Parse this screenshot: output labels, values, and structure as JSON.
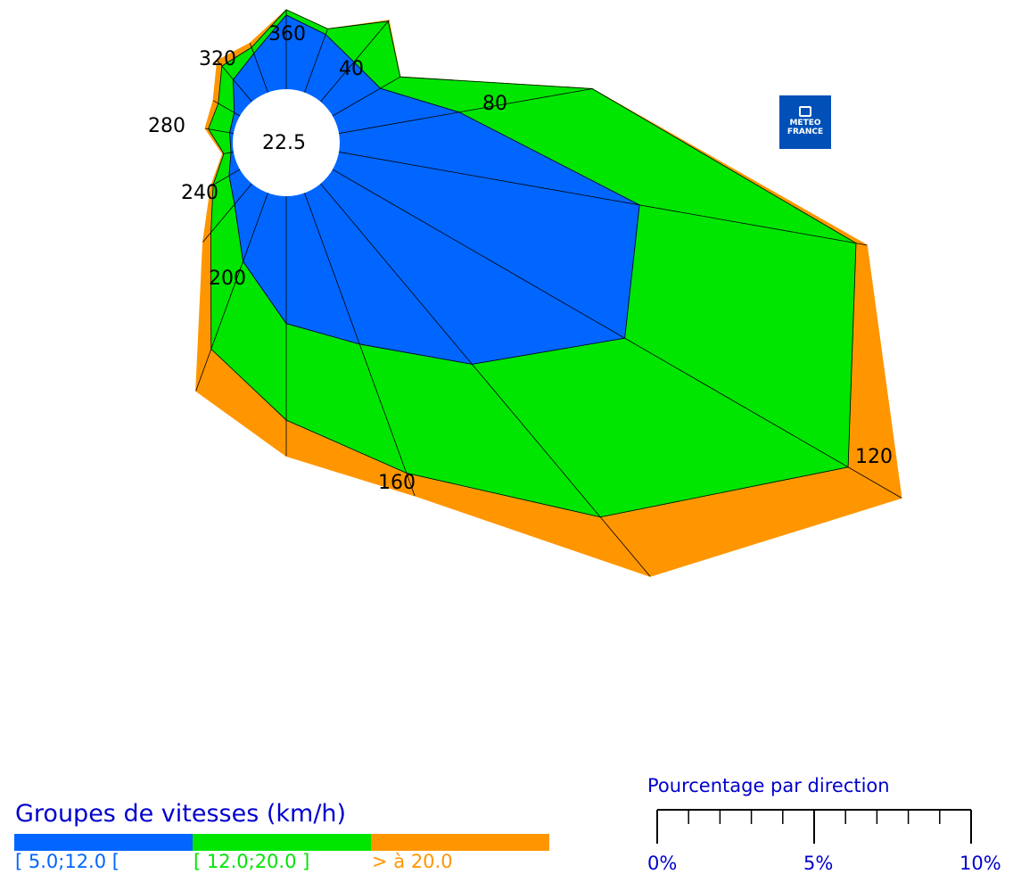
{
  "chart_data": {
    "type": "wind-rose",
    "calm_value": "22.5",
    "direction_labels": [
      "360",
      "40",
      "80",
      "120",
      "160",
      "200",
      "240",
      "280",
      "320"
    ],
    "directions": [
      0,
      20,
      40,
      60,
      80,
      100,
      120,
      140,
      160,
      180,
      200,
      220,
      240,
      260,
      280,
      300,
      320,
      340
    ],
    "series": [
      {
        "name": "[ 5.0;12.0 [",
        "color": "#0066ff",
        "values": [
          1.13,
          0.94,
          0.79,
          0.84,
          1.86,
          4.65,
          5.14,
          3.59,
          2.45,
          1.94,
          1.11,
          0.41,
          0.19,
          0.04,
          0.06,
          0.1,
          0.44,
          0.63
        ]
      },
      {
        "name": "[ 12.0;20.0 ]",
        "color": "#00e600",
        "values": [
          0.08,
          0.09,
          0.81,
          0.35,
          2.06,
          3.35,
          3.93,
          3.04,
          2.09,
          1.47,
          1.42,
          0.56,
          0.28,
          0.11,
          0.33,
          0.28,
          0.27,
          0.1
        ]
      },
      {
        "name": "> à 20.0",
        "color": "#ff9600",
        "values": [
          0.0,
          0.0,
          0.02,
          0.0,
          0.0,
          0.17,
          0.94,
          1.18,
          0.37,
          0.55,
          0.68,
          0.19,
          0.04,
          0.02,
          0.05,
          0.09,
          0.11,
          0.07
        ]
      }
    ]
  },
  "legend": {
    "title": "Groupes de vitesses (km/h)",
    "items": [
      {
        "label": "[ 5.0;12.0 [",
        "color": "#0066ff"
      },
      {
        "label": "[ 12.0;20.0 ]",
        "color": "#00e600"
      },
      {
        "label": "> à 20.0",
        "color": "#ff9600"
      }
    ]
  },
  "scale": {
    "title": "Pourcentage par direction",
    "labels": [
      "0%",
      "5%",
      "10%"
    ]
  },
  "logo": {
    "line1": "METEO",
    "line2": "FRANCE"
  }
}
